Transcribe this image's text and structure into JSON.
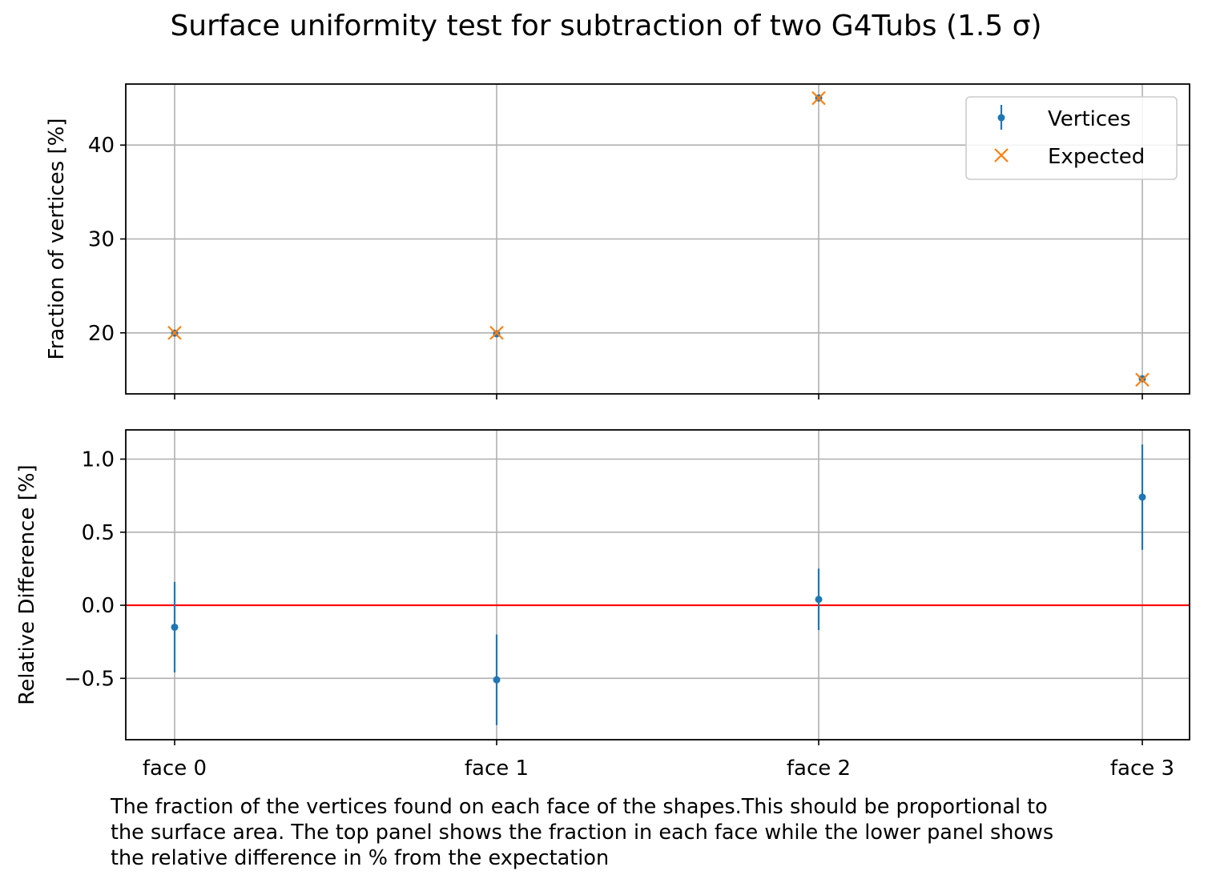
{
  "title": "Surface uniformity test for subtraction of two G4Tubs (1.5 σ)",
  "caption": [
    "The fraction of the vertices found on each face of the shapes.This should be proportional to",
    "the surface area. The top panel shows the fraction in each face while the lower panel shows",
    "the relative difference in % from the expectation"
  ],
  "colors": {
    "vertices": "#1f77b4",
    "expected": "#ff7f0e",
    "reference_line": "#ff0000",
    "grid": "#b0b0b0"
  },
  "chart_data": [
    {
      "type": "scatter",
      "panel": "top",
      "ylabel": "Fraction of vertices [%]",
      "categories": [
        "face 0",
        "face 1",
        "face 2",
        "face 3"
      ],
      "ylim": [
        13.5,
        46.5
      ],
      "yticks": [
        20,
        30,
        40
      ],
      "grid": true,
      "legend": {
        "placement": "top-right",
        "entries": [
          "Vertices",
          "Expected"
        ]
      },
      "series": [
        {
          "name": "Vertices",
          "marker": "point-errorbar",
          "values": [
            19.97,
            19.9,
            45.02,
            15.11
          ],
          "errors": [
            0.06,
            0.06,
            0.1,
            0.05
          ]
        },
        {
          "name": "Expected",
          "marker": "x",
          "values": [
            20.0,
            20.0,
            45.0,
            15.0
          ]
        }
      ]
    },
    {
      "type": "scatter",
      "panel": "bottom",
      "ylabel": "Relative Difference [%]",
      "categories": [
        "face 0",
        "face 1",
        "face 2",
        "face 3"
      ],
      "ylim": [
        -0.92,
        1.2
      ],
      "yticks": [
        -0.5,
        0.0,
        0.5,
        1.0
      ],
      "yticklabels": [
        "−0.5",
        "0.0",
        "0.5",
        "1.0"
      ],
      "grid": true,
      "reference_line": 0.0,
      "series": [
        {
          "name": "Vertices",
          "marker": "point-errorbar",
          "values": [
            -0.15,
            -0.51,
            0.04,
            0.74
          ],
          "errors": [
            0.31,
            0.31,
            0.21,
            0.36
          ]
        }
      ]
    }
  ]
}
